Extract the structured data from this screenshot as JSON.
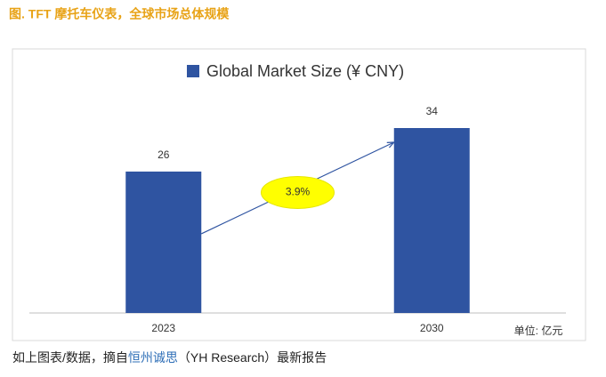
{
  "header": {
    "title": "图. TFT 摩托车仪表，全球市场总体规模"
  },
  "chart_data": {
    "type": "bar",
    "series": [
      {
        "name": "Global Market Size (¥ CNY)",
        "color": "#2f54a1",
        "values": [
          26,
          34
        ]
      }
    ],
    "categories": [
      "2023",
      "2030"
    ],
    "annotation": "3.9%",
    "unit": "单位: 亿元"
  },
  "caption": {
    "parts": [
      "如上图表/数据，摘自",
      "恒州诚思",
      "（YH Research）最新报告"
    ]
  }
}
